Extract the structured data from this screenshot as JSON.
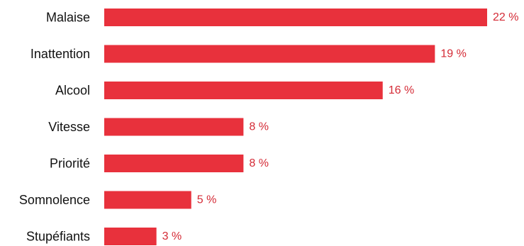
{
  "chart_data": {
    "type": "bar",
    "orientation": "horizontal",
    "categories": [
      "Malaise",
      "Inattention",
      "Alcool",
      "Vitesse",
      "Priorité",
      "Somnolence",
      "Stupéfiants"
    ],
    "values": [
      22,
      19,
      16,
      8,
      8,
      5,
      3
    ],
    "value_labels": [
      "22 %",
      "19 %",
      "16 %",
      "8 %",
      "8 %",
      "5 %",
      "3 %"
    ],
    "unit": "%",
    "xlim": [
      0,
      22
    ],
    "grid": false,
    "legend": "none",
    "bar_color": "#e8313c",
    "label_color": "#d42a35"
  }
}
